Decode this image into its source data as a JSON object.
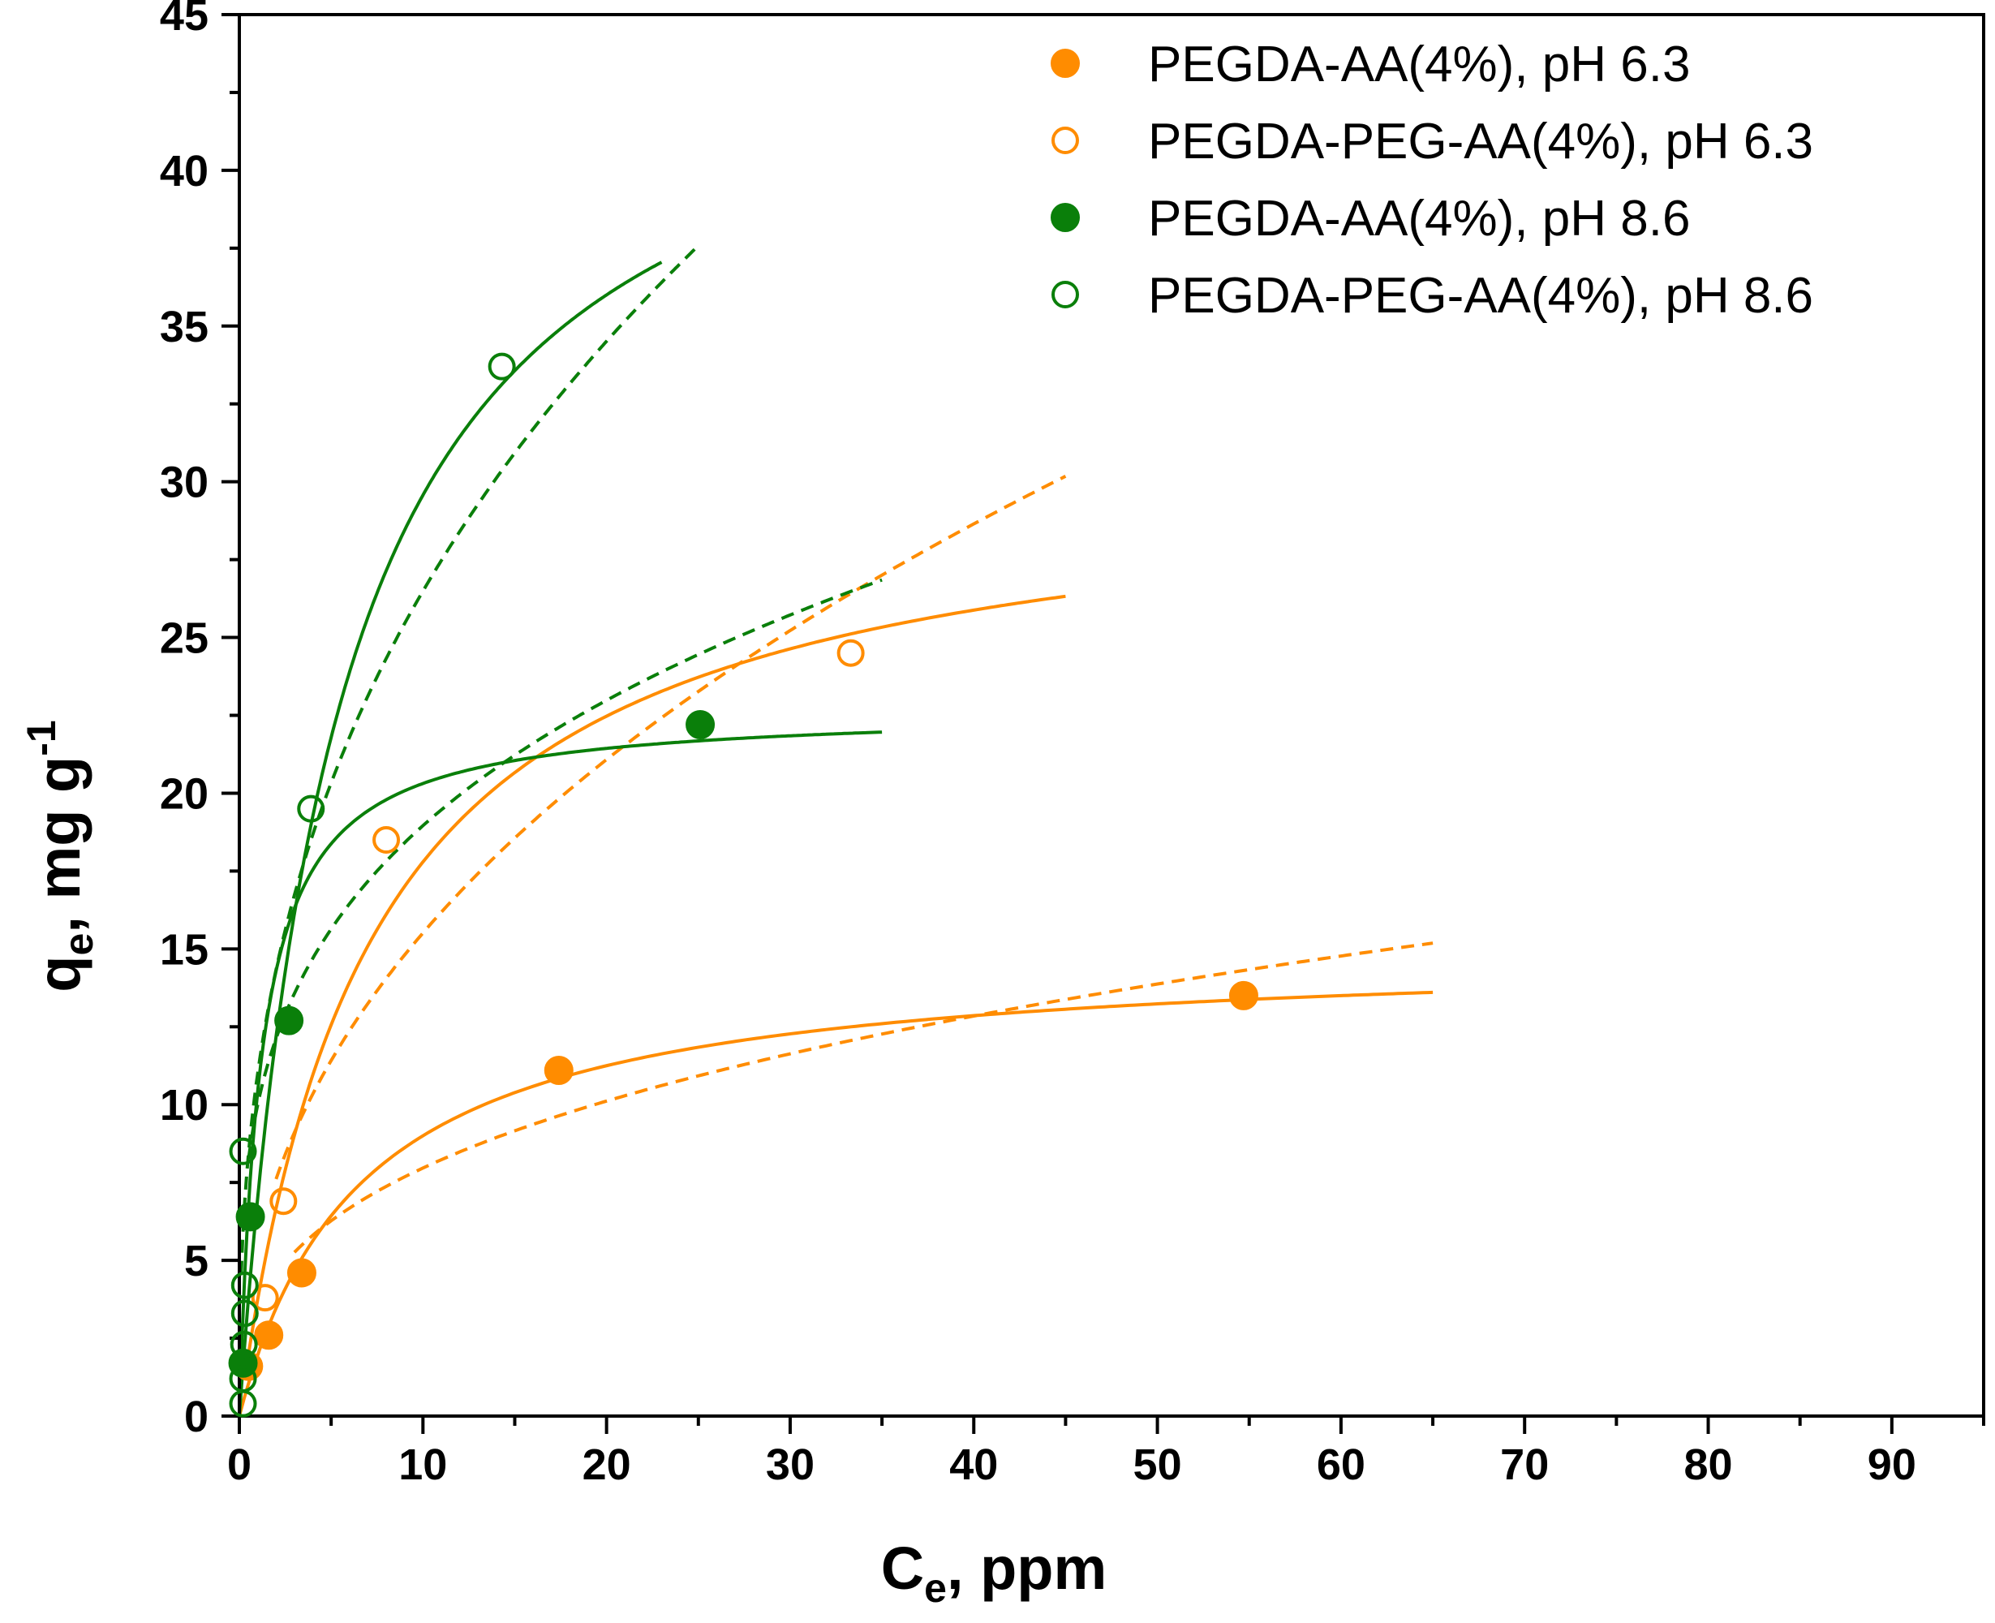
{
  "chart_data": {
    "type": "scatter",
    "title": "",
    "xlabel": {
      "base": "C",
      "sub": "e",
      "rest": ", ppm"
    },
    "ylabel": {
      "base": "q",
      "sub": "e",
      "rest": ", mg g",
      "sup": "-1"
    },
    "xlim": [
      0,
      95
    ],
    "ylim": [
      0,
      45
    ],
    "xticks": [
      0,
      10,
      20,
      30,
      40,
      50,
      60,
      70,
      80,
      90
    ],
    "yticks": [
      0,
      5,
      10,
      15,
      20,
      25,
      30,
      35,
      40,
      45
    ],
    "legend_position": "top-right",
    "series": [
      {
        "name": "PEGDA-AA(4%), pH 6.3",
        "color": "#ff8c00",
        "marker": "filled-circle",
        "points": [
          [
            0.5,
            1.6
          ],
          [
            1.6,
            2.6
          ],
          [
            3.4,
            4.6
          ],
          [
            17.4,
            11.1
          ],
          [
            54.7,
            13.5
          ]
        ],
        "fits": [
          {
            "model": "langmuir",
            "style": "solid",
            "qmax": 15.0,
            "K": 0.15,
            "xrange": [
              0,
              65
            ]
          },
          {
            "model": "freundlich",
            "style": "dashed",
            "Kf": 3.6,
            "n": 2.9,
            "xrange": [
              3,
              65
            ]
          }
        ]
      },
      {
        "name": "PEGDA-PEG-AA(4%), pH 6.3",
        "color": "#ff8c00",
        "marker": "open-circle",
        "points": [
          [
            1.4,
            3.8
          ],
          [
            2.4,
            6.9
          ],
          [
            8.0,
            18.5
          ],
          [
            33.3,
            24.5
          ]
        ],
        "fits": [
          {
            "model": "langmuir",
            "style": "solid",
            "qmax": 30.5,
            "K": 0.14,
            "xrange": [
              0.5,
              45
            ]
          },
          {
            "model": "freundlich",
            "style": "dashed",
            "Kf": 5.6,
            "n": 2.26,
            "xrange": [
              2,
              45
            ]
          }
        ]
      },
      {
        "name": "PEGDA-AA(4%), pH 8.6",
        "color": "#0a7f0a",
        "marker": "filled-circle",
        "points": [
          [
            0.2,
            1.7
          ],
          [
            0.6,
            6.4
          ],
          [
            2.7,
            12.7
          ],
          [
            25.1,
            22.2
          ]
        ],
        "fits": [
          {
            "model": "langmuir",
            "style": "solid",
            "qmax": 22.7,
            "K": 0.85,
            "xrange": [
              0,
              35
            ]
          },
          {
            "model": "freundlich",
            "style": "dashed",
            "Kf": 10.0,
            "n": 3.6,
            "xrange": [
              0.5,
              35
            ]
          }
        ]
      },
      {
        "name": "PEGDA-PEG-AA(4%), pH 8.6",
        "color": "#0a7f0a",
        "marker": "open-circle",
        "points": [
          [
            0.2,
            0.4
          ],
          [
            0.2,
            1.2
          ],
          [
            0.25,
            2.3
          ],
          [
            0.3,
            3.3
          ],
          [
            0.3,
            4.2
          ],
          [
            0.2,
            8.5
          ],
          [
            3.9,
            19.5
          ],
          [
            14.3,
            33.7
          ]
        ],
        "fits": [
          {
            "model": "langmuir",
            "style": "solid",
            "qmax": 46.0,
            "K": 0.18,
            "xrange": [
              0,
              23
            ]
          },
          {
            "model": "freundlich",
            "style": "dashed",
            "Kf": 11.0,
            "n": 2.62,
            "xrange": [
              0.1,
              25
            ]
          }
        ]
      }
    ]
  }
}
